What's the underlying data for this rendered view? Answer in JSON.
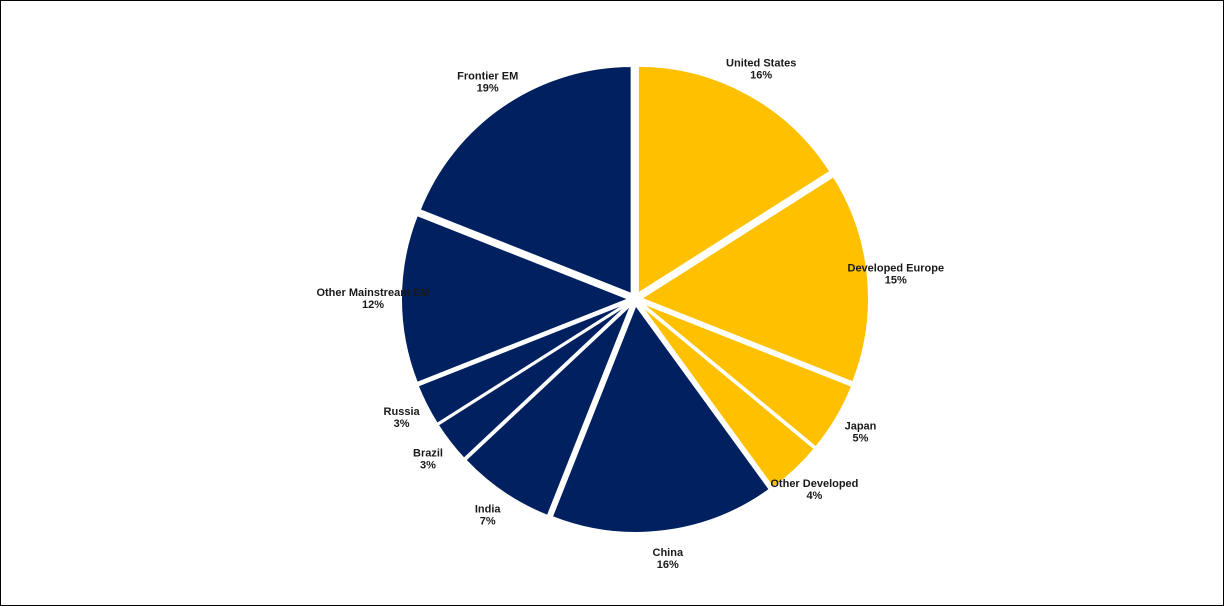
{
  "chart_data": {
    "type": "pie",
    "title": "",
    "start_angle_deg": 0,
    "direction": "clockwise",
    "slices": [
      {
        "label": "United States",
        "value_label": "16%",
        "value": 16,
        "color": "#FFC000",
        "exploded": true
      },
      {
        "label": "Developed Europe",
        "value_label": "15%",
        "value": 15,
        "color": "#FFC000",
        "exploded": true
      },
      {
        "label": "Japan",
        "value_label": "5%",
        "value": 5,
        "color": "#FFC000",
        "exploded": true
      },
      {
        "label": "Other Developed",
        "value_label": "4%",
        "value": 4,
        "color": "#FFC000",
        "exploded": true
      },
      {
        "label": "China",
        "value_label": "16%",
        "value": 16,
        "color": "#002060",
        "exploded": true
      },
      {
        "label": "India",
        "value_label": "7%",
        "value": 7,
        "color": "#002060",
        "exploded": true
      },
      {
        "label": "Brazil",
        "value_label": "3%",
        "value": 3,
        "color": "#002060",
        "exploded": true
      },
      {
        "label": "Russia",
        "value_label": "3%",
        "value": 3,
        "color": "#002060",
        "exploded": true
      },
      {
        "label": "Other Mainstream EM",
        "value_label": "12%",
        "value": 12,
        "color": "#002060",
        "exploded": true
      },
      {
        "label": "Frontier EM",
        "value_label": "19%",
        "value": 19,
        "color": "#002060",
        "exploded": true
      }
    ]
  }
}
